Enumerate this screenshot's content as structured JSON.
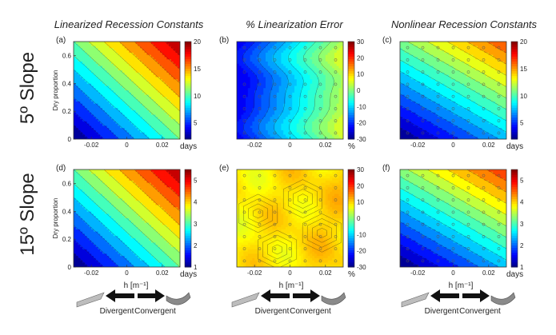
{
  "figure": {
    "column_titles": [
      "Linearized Recession Constants",
      "% Linearization Error",
      "Nonlinear Recession Constants"
    ],
    "row_titles": [
      "5º Slope",
      "15º Slope"
    ],
    "schematic": {
      "axis_label": "h [m⁻¹]",
      "left_label": "Divergent",
      "right_label": "Convergent"
    }
  },
  "chart_data": [
    {
      "panel": "(a)",
      "type": "heatmap",
      "row": 0,
      "col": 0,
      "xlabel": "",
      "ylabel": "Dry proportion",
      "xlim": [
        -0.03,
        0.03
      ],
      "ylim": [
        0,
        0.7
      ],
      "xticks": [
        "-0.02",
        "0",
        "0.02"
      ],
      "yticks": [
        "0",
        "0.2",
        "0.4",
        "0.6"
      ],
      "colorbar": {
        "min": 2,
        "max": 20,
        "ticks": [
          "5",
          "10",
          "15",
          "20"
        ],
        "unit": "days"
      },
      "field": {
        "kind": "diagonal",
        "low": 2.5,
        "high": 20,
        "slope": 1.0
      },
      "markers": false
    },
    {
      "panel": "(b)",
      "type": "heatmap",
      "row": 0,
      "col": 1,
      "xlabel": "",
      "ylabel": "",
      "xlim": [
        -0.03,
        0.03
      ],
      "ylim": [
        0,
        0.7
      ],
      "xticks": [
        "-0.02",
        "0",
        "0.02"
      ],
      "yticks": [],
      "colorbar": {
        "min": -30,
        "max": 30,
        "ticks": [
          "-30",
          "-20",
          "-10",
          "0",
          "10",
          "20",
          "30"
        ],
        "unit": "%"
      },
      "field": {
        "kind": "bands",
        "low": -23,
        "high": 5
      },
      "markers": true
    },
    {
      "panel": "(c)",
      "type": "heatmap",
      "row": 0,
      "col": 2,
      "xlabel": "",
      "ylabel": "",
      "xlim": [
        -0.03,
        0.03
      ],
      "ylim": [
        0,
        0.7
      ],
      "xticks": [
        "-0.02",
        "0",
        "0.02"
      ],
      "yticks": [],
      "colorbar": {
        "min": 2,
        "max": 20,
        "ticks": [
          "5",
          "10",
          "15",
          "20"
        ],
        "unit": "days"
      },
      "field": {
        "kind": "diagonal",
        "low": 2.5,
        "high": 17,
        "slope": 1.6
      },
      "markers": true
    },
    {
      "panel": "(d)",
      "type": "heatmap",
      "row": 1,
      "col": 0,
      "xlabel": "",
      "ylabel": "Dry proportion",
      "xlim": [
        -0.03,
        0.03
      ],
      "ylim": [
        0,
        0.7
      ],
      "xticks": [
        "-0.02",
        "0",
        "0.02"
      ],
      "yticks": [
        "0",
        "0.2",
        "0.4",
        "0.6"
      ],
      "colorbar": {
        "min": 1,
        "max": 5.5,
        "ticks": [
          "1",
          "2",
          "3",
          "4",
          "5"
        ],
        "unit": "days"
      },
      "field": {
        "kind": "diagonal",
        "low": 1.1,
        "high": 5.5,
        "slope": 1.0
      },
      "markers": false
    },
    {
      "panel": "(e)",
      "type": "heatmap",
      "row": 1,
      "col": 1,
      "xlabel": "",
      "ylabel": "",
      "xlim": [
        -0.03,
        0.03
      ],
      "ylim": [
        0,
        0.7
      ],
      "xticks": [
        "-0.02",
        "0",
        "0.02"
      ],
      "yticks": [],
      "colorbar": {
        "min": -30,
        "max": 30,
        "ticks": [
          "-30",
          "-20",
          "-10",
          "0",
          "10",
          "20",
          "30"
        ],
        "unit": "%"
      },
      "field": {
        "kind": "patchy",
        "low": 5,
        "high": 14
      },
      "markers": true
    },
    {
      "panel": "(f)",
      "type": "heatmap",
      "row": 1,
      "col": 2,
      "xlabel": "",
      "ylabel": "",
      "xlim": [
        -0.03,
        0.03
      ],
      "ylim": [
        0,
        0.7
      ],
      "xticks": [
        "-0.02",
        "0",
        "0.02"
      ],
      "yticks": [],
      "colorbar": {
        "min": 1,
        "max": 5.5,
        "ticks": [
          "1",
          "2",
          "3",
          "4",
          "5"
        ],
        "unit": "days"
      },
      "field": {
        "kind": "diagonal",
        "low": 1.1,
        "high": 4.9,
        "slope": 1.6
      },
      "markers": true
    }
  ]
}
